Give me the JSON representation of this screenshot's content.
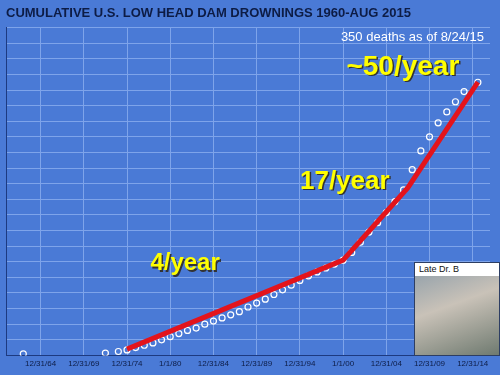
{
  "chart_data": {
    "type": "scatter",
    "title": "CUMULATIVE U.S. LOW HEAD DAM DROWNINGS 1960-AUG 2015",
    "subtitle": "350 deaths as of 8/24/15",
    "annotations": [
      "4/year",
      "17/year",
      "~50/year"
    ],
    "photo_caption": "Late Dr. B",
    "series": [
      {
        "type": "scatter",
        "color": "#ffffff",
        "marker": "circle",
        "x": [
          1963,
          1972.5,
          1974,
          1975,
          1976,
          1977,
          1978,
          1979,
          1980,
          1981,
          1982,
          1983,
          1984,
          1985,
          1986,
          1987,
          1988,
          1989,
          1990,
          1991,
          1992,
          1993,
          1994,
          1995,
          1996,
          1997,
          1998,
          1999,
          2000,
          2001,
          2002,
          2003,
          2004,
          2005,
          2006,
          2007,
          2008,
          2009,
          2010,
          2011,
          2012,
          2013,
          2014,
          2015.6
        ],
        "values": [
          2,
          3,
          5,
          7,
          10,
          13,
          16,
          20,
          24,
          28,
          32,
          35,
          40,
          44,
          48,
          52,
          56,
          62,
          67,
          72,
          78,
          84,
          90,
          96,
          102,
          107,
          112,
          117,
          122,
          132,
          145,
          158,
          170,
          183,
          197,
          212,
          238,
          262,
          280,
          298,
          312,
          325,
          338,
          350
        ]
      },
      {
        "type": "line",
        "color": "#e3141c",
        "line_style": "solid",
        "x": [
          1975,
          2000,
          2007.5,
          2015.6
        ],
        "values": [
          8,
          122,
          215,
          350
        ]
      }
    ],
    "xlim": [
      1961,
      2017
    ],
    "xticks": [
      {
        "value": 1965,
        "label": "12/31/64"
      },
      {
        "value": 1970,
        "label": "12/31/69"
      },
      {
        "value": 1975,
        "label": "12/31/74"
      },
      {
        "value": 1980,
        "label": "1/1/80"
      },
      {
        "value": 1985,
        "label": "12/31/84"
      },
      {
        "value": 1990,
        "label": "12/31/89"
      },
      {
        "value": 1995,
        "label": "12/31/94"
      },
      {
        "value": 2000,
        "label": "1/1/00"
      },
      {
        "value": 2005,
        "label": "12/31/04"
      },
      {
        "value": 2010,
        "label": "12/31/09"
      },
      {
        "value": 2015,
        "label": "12/31/14"
      }
    ],
    "ylim": [
      0,
      420
    ],
    "yticks": [
      0,
      20,
      40,
      60,
      80,
      100,
      120,
      140,
      160,
      180,
      200,
      220,
      240,
      260,
      280,
      300,
      320,
      340,
      360,
      380,
      400,
      420
    ],
    "grid": true,
    "tick_labels": "x"
  }
}
